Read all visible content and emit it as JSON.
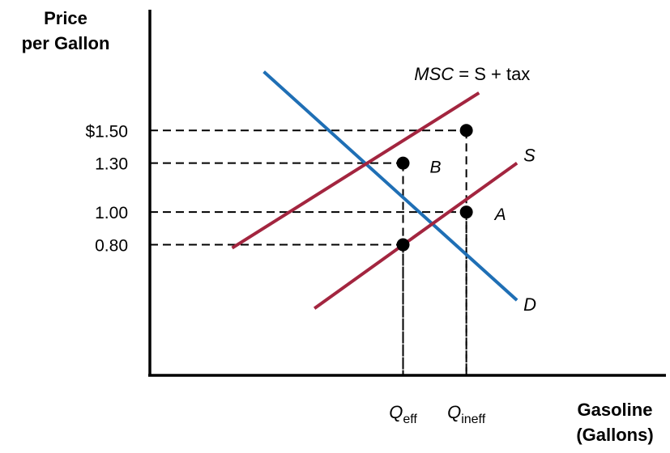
{
  "chart_data": {
    "type": "line",
    "ylabel_line1": "Price",
    "ylabel_line2": "per Gallon",
    "xlabel_line1": "Gasoline",
    "xlabel_line2": "(Gallons)",
    "yticks": [
      {
        "value": 1.5,
        "label": "$1.50"
      },
      {
        "value": 1.3,
        "label": "1.30"
      },
      {
        "value": 1.0,
        "label": "1.00"
      },
      {
        "value": 0.8,
        "label": "0.80"
      }
    ],
    "xticks": [
      {
        "value": 1,
        "main": "Q",
        "sub": "eff"
      },
      {
        "value": 2,
        "main": "Q",
        "sub": "ineff"
      }
    ],
    "xlim": [
      -3.0,
      5.0
    ],
    "ylim": [
      0.0,
      2.2
    ],
    "series": [
      {
        "name": "D",
        "label": "D",
        "color": "#1f6fb5",
        "points": [
          [
            -1.2,
            1.86
          ],
          [
            2.8,
            0.46
          ]
        ]
      },
      {
        "name": "MSC",
        "label_italic": "MSC",
        "label_rest": " = S + tax",
        "color": "#a3253f",
        "points": [
          [
            -1.7,
            0.78
          ],
          [
            2.2,
            1.73
          ]
        ]
      },
      {
        "name": "S",
        "label": "S",
        "color": "#a3253f",
        "points": [
          [
            -0.4,
            0.41
          ],
          [
            2.8,
            1.3
          ]
        ]
      }
    ],
    "points": [
      {
        "x": 2,
        "y": 1.5,
        "label": ""
      },
      {
        "x": 1,
        "y": 1.3,
        "label": "B"
      },
      {
        "x": 2,
        "y": 1.0,
        "label": "A"
      },
      {
        "x": 1,
        "y": 0.8,
        "label": ""
      }
    ],
    "guides": [
      {
        "x": 2,
        "y": 1.5
      },
      {
        "x": 1,
        "y": 1.3
      },
      {
        "x": 2,
        "y": 1.0
      },
      {
        "x": 1,
        "y": 0.8
      }
    ]
  }
}
